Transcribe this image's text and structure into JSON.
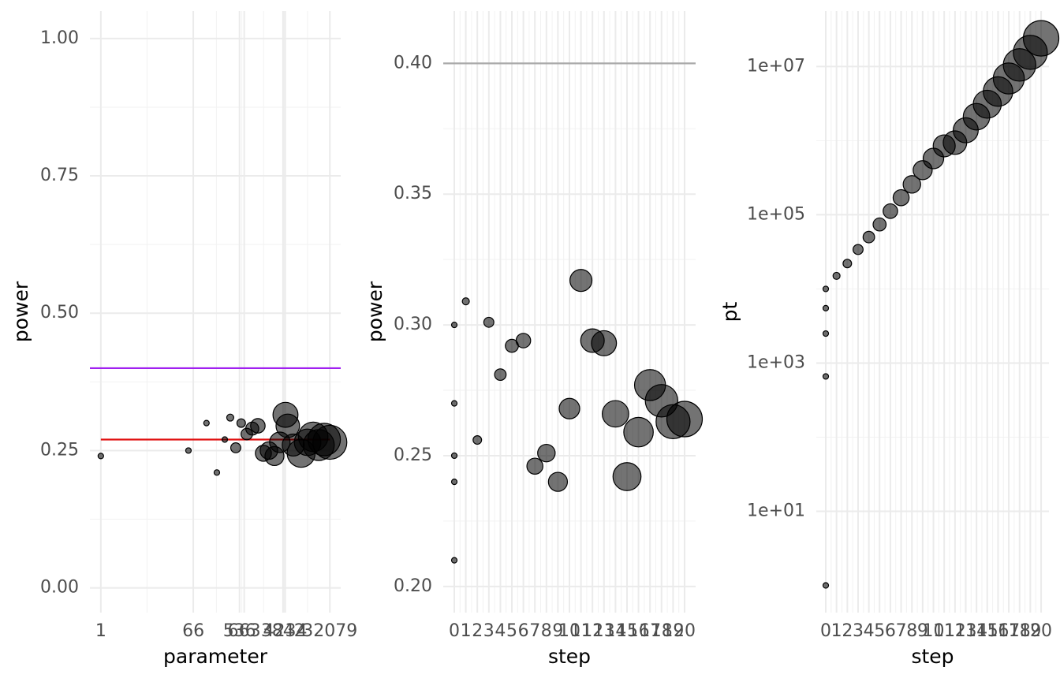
{
  "chart_data": [
    {
      "type": "scatter",
      "x_label": "parameter",
      "y_label": "power",
      "xlog": true,
      "grid": true,
      "color": "#000000",
      "x": [
        1,
        53,
        120,
        192,
        275,
        352,
        452,
        578,
        746,
        955,
        1230,
        1580,
        2030,
        2610,
        3330,
        4300,
        4770,
        6110,
        8740,
        11700,
        15100,
        19400,
        24800,
        32079
      ],
      "values": [
        0.24,
        0.25,
        0.3,
        0.21,
        0.27,
        0.31,
        0.255,
        0.3,
        0.28,
        0.29,
        0.295,
        0.245,
        0.25,
        0.24,
        0.265,
        0.315,
        0.295,
        0.26,
        0.245,
        0.265,
        0.275,
        0.26,
        0.27,
        0.265
      ],
      "sizes": [
        0,
        0,
        0,
        0,
        0,
        1,
        3,
        2,
        4,
        5,
        6,
        7,
        8,
        9,
        10,
        13,
        12,
        11,
        15,
        14,
        16,
        17,
        18,
        19
      ],
      "hlines": [
        {
          "value": 0.4,
          "color": "#a020f0"
        },
        {
          "value": 0.27,
          "color": "#e01010",
          "xmin": 1,
          "xmax": 32079
        }
      ],
      "xlim": [
        0.61,
        52500
      ],
      "ylim": [
        -0.045,
        1.05
      ],
      "xticks": [
        1,
        66,
        536,
        663,
        3842,
        4234,
        32079
      ],
      "yticks": [
        {
          "value": 0,
          "label": "0.00"
        },
        {
          "value": 0.25,
          "label": "0.25"
        },
        {
          "value": 0.5,
          "label": "0.50"
        },
        {
          "value": 0.75,
          "label": "0.75"
        },
        {
          "value": 1,
          "label": "1.00"
        }
      ]
    },
    {
      "type": "scatter",
      "x_label": "step",
      "y_label": "power",
      "grid": true,
      "color": "#000000",
      "x": [
        0,
        0,
        0,
        0,
        0,
        1,
        2,
        3,
        4,
        5,
        6,
        7,
        8,
        9,
        10,
        11,
        12,
        13,
        14,
        15,
        16,
        17,
        18,
        19,
        20
      ],
      "values": [
        0.3,
        0.27,
        0.25,
        0.24,
        0.21,
        0.309,
        0.256,
        0.301,
        0.281,
        0.292,
        0.294,
        0.246,
        0.251,
        0.24,
        0.268,
        0.317,
        0.294,
        0.293,
        0.266,
        0.242,
        0.259,
        0.277,
        0.271,
        0.263,
        0.264
      ],
      "sizes": [
        0,
        0,
        0,
        0,
        0,
        1,
        2,
        3,
        4,
        5,
        6,
        7,
        8,
        9,
        10,
        11,
        12,
        13,
        14,
        15,
        16,
        17,
        18,
        19,
        20
      ],
      "hlines": [
        {
          "value": 0.4,
          "color": "#a9a9a9"
        }
      ],
      "xlim": [
        -0.96,
        20.96
      ],
      "ylim": [
        0.19,
        0.42
      ],
      "xticks": [
        0,
        1,
        2,
        3,
        4,
        5,
        6,
        7,
        8,
        9,
        10,
        11,
        12,
        13,
        14,
        15,
        16,
        17,
        18,
        19,
        20
      ],
      "yticks": [
        {
          "value": 0.2,
          "label": "0.20"
        },
        {
          "value": 0.25,
          "label": "0.25"
        },
        {
          "value": 0.3,
          "label": "0.30"
        },
        {
          "value": 0.35,
          "label": "0.35"
        },
        {
          "value": 0.4,
          "label": "0.40"
        }
      ]
    },
    {
      "type": "scatter",
      "x_label": "step",
      "y_label": "pt",
      "ylog": true,
      "grid": true,
      "color": "#000000",
      "x": [
        0,
        0,
        0,
        0,
        0,
        1,
        2,
        3,
        4,
        5,
        6,
        7,
        8,
        9,
        10,
        11,
        12,
        13,
        14,
        15,
        16,
        17,
        18,
        19,
        20
      ],
      "values": [
        1,
        660,
        2500,
        5500,
        10000,
        15000,
        22000,
        34000,
        50000,
        74000,
        112000,
        170000,
        257000,
        400000,
        575000,
        850000,
        940000,
        1380000,
        2100000,
        3100000,
        4600000,
        6900000,
        10500000,
        15500000,
        24000000
      ],
      "sizes": [
        0,
        0,
        0,
        0,
        0,
        1,
        2,
        3,
        4,
        5,
        6,
        7,
        8,
        9,
        10,
        11,
        12,
        13,
        14,
        15,
        16,
        17,
        18,
        19,
        20
      ],
      "xlim": [
        -0.88,
        20.73
      ],
      "ylim": [
        0.43,
        56000000
      ],
      "xticks": [
        0,
        1,
        2,
        3,
        4,
        5,
        6,
        7,
        8,
        9,
        10,
        11,
        12,
        13,
        14,
        15,
        16,
        17,
        18,
        19,
        20
      ],
      "yticks": [
        {
          "value": 10,
          "label": "1e+01"
        },
        {
          "value": 1000,
          "label": "1e+03"
        },
        {
          "value": 100000,
          "label": "1e+05"
        },
        {
          "value": 10000000,
          "label": "1e+07"
        }
      ]
    }
  ]
}
